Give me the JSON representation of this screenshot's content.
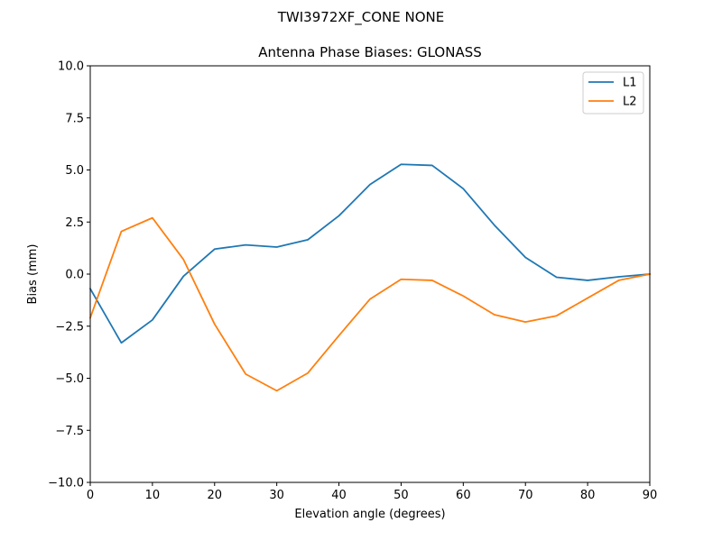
{
  "figure": {
    "suptitle": "TWI3972XF_CONE  NONE"
  },
  "chart_data": {
    "type": "line",
    "title": "Antenna Phase Biases: GLONASS",
    "xlabel": "Elevation angle (degrees)",
    "ylabel": "Bias (mm)",
    "xlim": [
      0,
      90
    ],
    "ylim": [
      -10,
      10
    ],
    "xticks": [
      0,
      10,
      20,
      30,
      40,
      50,
      60,
      70,
      80,
      90
    ],
    "xtick_labels": [
      "0",
      "10",
      "20",
      "30",
      "40",
      "50",
      "60",
      "70",
      "80",
      "90"
    ],
    "yticks": [
      -10,
      -7.5,
      -5,
      -2.5,
      0,
      2.5,
      5,
      7.5,
      10
    ],
    "ytick_labels": [
      "−10.0",
      "−7.5",
      "−5.0",
      "−2.5",
      "0.0",
      "2.5",
      "5.0",
      "7.5",
      "10.0"
    ],
    "grid": false,
    "legend_position": "top-right",
    "x": [
      0,
      5,
      10,
      15,
      20,
      25,
      30,
      35,
      40,
      45,
      50,
      55,
      60,
      65,
      70,
      75,
      80,
      85,
      90
    ],
    "series": [
      {
        "name": "L1",
        "color": "#1f77b4",
        "values": [
          -0.7,
          -3.3,
          -2.2,
          -0.1,
          1.2,
          1.4,
          1.3,
          1.65,
          2.8,
          4.3,
          5.27,
          5.22,
          4.1,
          2.35,
          0.8,
          -0.15,
          -0.3,
          -0.13,
          0.0
        ]
      },
      {
        "name": "L2",
        "color": "#ff7f0e",
        "values": [
          -2.1,
          2.05,
          2.7,
          0.7,
          -2.4,
          -4.8,
          -5.6,
          -4.75,
          -2.95,
          -1.2,
          -0.25,
          -0.3,
          -1.05,
          -1.95,
          -2.3,
          -2.0,
          -1.15,
          -0.3,
          0.0
        ]
      }
    ]
  }
}
